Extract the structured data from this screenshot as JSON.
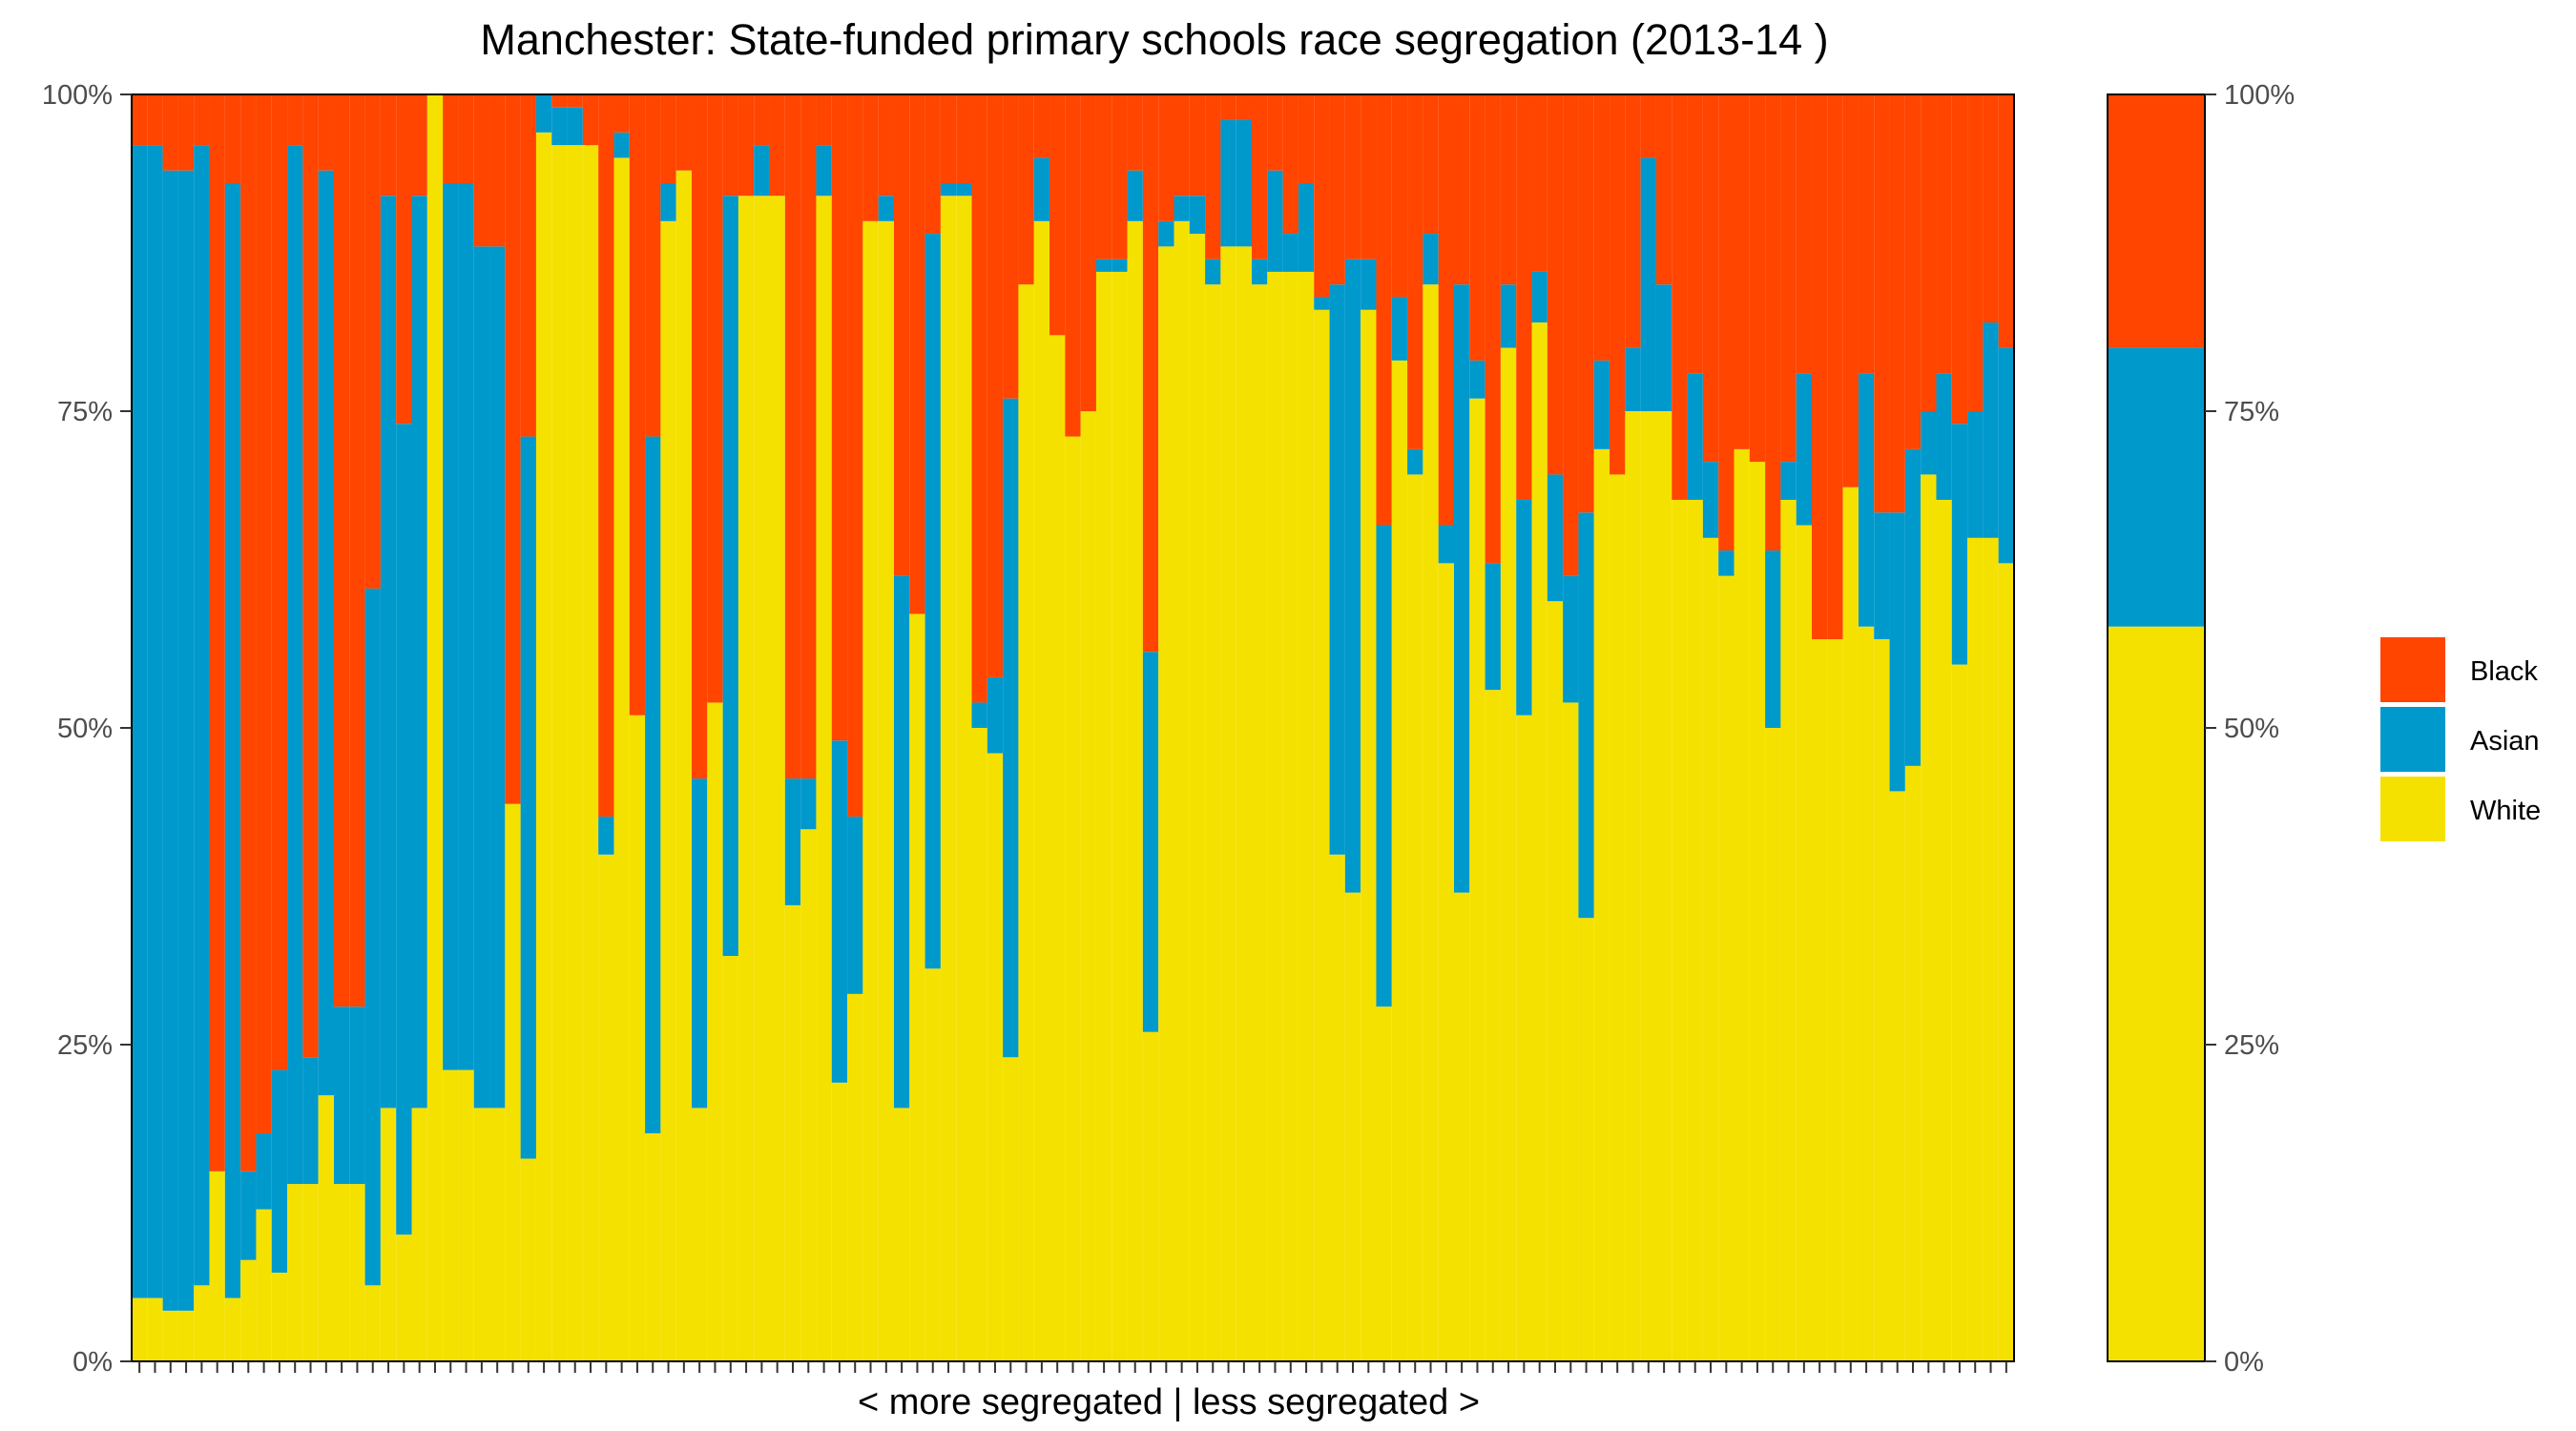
{
  "chart_data": {
    "type": "bar",
    "stacked": true,
    "title": "Manchester: State-funded primary schools race segregation (2013-14 )",
    "xlabel": "< more segregated | less segregated >",
    "ylabel": "",
    "ylim": [
      0,
      100
    ],
    "yticks": [
      "0%",
      "25%",
      "50%",
      "75%",
      "100%"
    ],
    "legend_position": "right",
    "stack_order": [
      "White",
      "Asian",
      "Black"
    ],
    "colors": {
      "Black": "#FF4500",
      "Asian": "#0099CC",
      "White": "#F5E100"
    },
    "legend": [
      {
        "name": "Black",
        "color": "#FF4500"
      },
      {
        "name": "Asian",
        "color": "#0099CC"
      },
      {
        "name": "White",
        "color": "#F5E100"
      }
    ],
    "schools": {
      "white": [
        5,
        5,
        4,
        4,
        6,
        15,
        5,
        8,
        12,
        7,
        14,
        14,
        21,
        14,
        14,
        6,
        20,
        10,
        20,
        100,
        23,
        23,
        20,
        20,
        44,
        16,
        97,
        96,
        96,
        96,
        40,
        95,
        51,
        18,
        90,
        94,
        20,
        52,
        32,
        92,
        92,
        92,
        36,
        42,
        92,
        22,
        29,
        90,
        90,
        20,
        59,
        31,
        92,
        92,
        50,
        48,
        24,
        85,
        90,
        81,
        73,
        75,
        86,
        86,
        90,
        26,
        88,
        90,
        89,
        85,
        88,
        88,
        85,
        86,
        86,
        86,
        83,
        40,
        37,
        83,
        28,
        79,
        70,
        85,
        63,
        37,
        76,
        53,
        80,
        51,
        82,
        60,
        52,
        35,
        72,
        70,
        75,
        75,
        75,
        68,
        68,
        65,
        62,
        72,
        71,
        50,
        68,
        66,
        57,
        57,
        69,
        58,
        57,
        45,
        47,
        70,
        68,
        55,
        65,
        65,
        63
      ],
      "asian": [
        91,
        91,
        90,
        90,
        90,
        0,
        88,
        7,
        6,
        16,
        82,
        10,
        73,
        14,
        14,
        55,
        72,
        64,
        72,
        0,
        70,
        70,
        68,
        68,
        0,
        57,
        3,
        3,
        3,
        0,
        3,
        2,
        0,
        55,
        3,
        0,
        26,
        0,
        60,
        0,
        4,
        0,
        10,
        4,
        4,
        27,
        14,
        0,
        2,
        42,
        0,
        58,
        1,
        1,
        2,
        6,
        52,
        0,
        5,
        0,
        0,
        0,
        1,
        1,
        4,
        30,
        2,
        2,
        3,
        2,
        10,
        10,
        2,
        8,
        3,
        7,
        1,
        45,
        50,
        4,
        38,
        5,
        2,
        4,
        3,
        48,
        3,
        10,
        5,
        17,
        4,
        10,
        10,
        32,
        7,
        0,
        5,
        20,
        10,
        0,
        10,
        6,
        2,
        0,
        0,
        14,
        3,
        12,
        0,
        0,
        0,
        20,
        10,
        22,
        25,
        5,
        10,
        19,
        10,
        17,
        17
      ],
      "black": [
        4,
        4,
        6,
        6,
        4,
        85,
        7,
        85,
        82,
        77,
        4,
        76,
        6,
        72,
        72,
        39,
        8,
        26,
        8,
        0,
        7,
        7,
        12,
        12,
        56,
        27,
        0,
        1,
        1,
        4,
        57,
        3,
        49,
        27,
        7,
        6,
        54,
        48,
        8,
        8,
        4,
        8,
        54,
        54,
        4,
        51,
        57,
        10,
        8,
        38,
        41,
        11,
        7,
        7,
        48,
        46,
        24,
        15,
        5,
        19,
        27,
        25,
        13,
        13,
        6,
        44,
        10,
        8,
        8,
        13,
        2,
        2,
        13,
        6,
        11,
        7,
        16,
        15,
        13,
        13,
        34,
        16,
        28,
        11,
        34,
        15,
        21,
        37,
        15,
        32,
        14,
        30,
        38,
        33,
        21,
        30,
        20,
        5,
        15,
        32,
        22,
        29,
        36,
        28,
        29,
        36,
        29,
        22,
        43,
        43,
        31,
        22,
        33,
        33,
        28,
        25,
        22,
        26,
        25,
        18,
        20
      ]
    },
    "overall": {
      "white": 58,
      "asian": 22,
      "black": 20
    }
  }
}
